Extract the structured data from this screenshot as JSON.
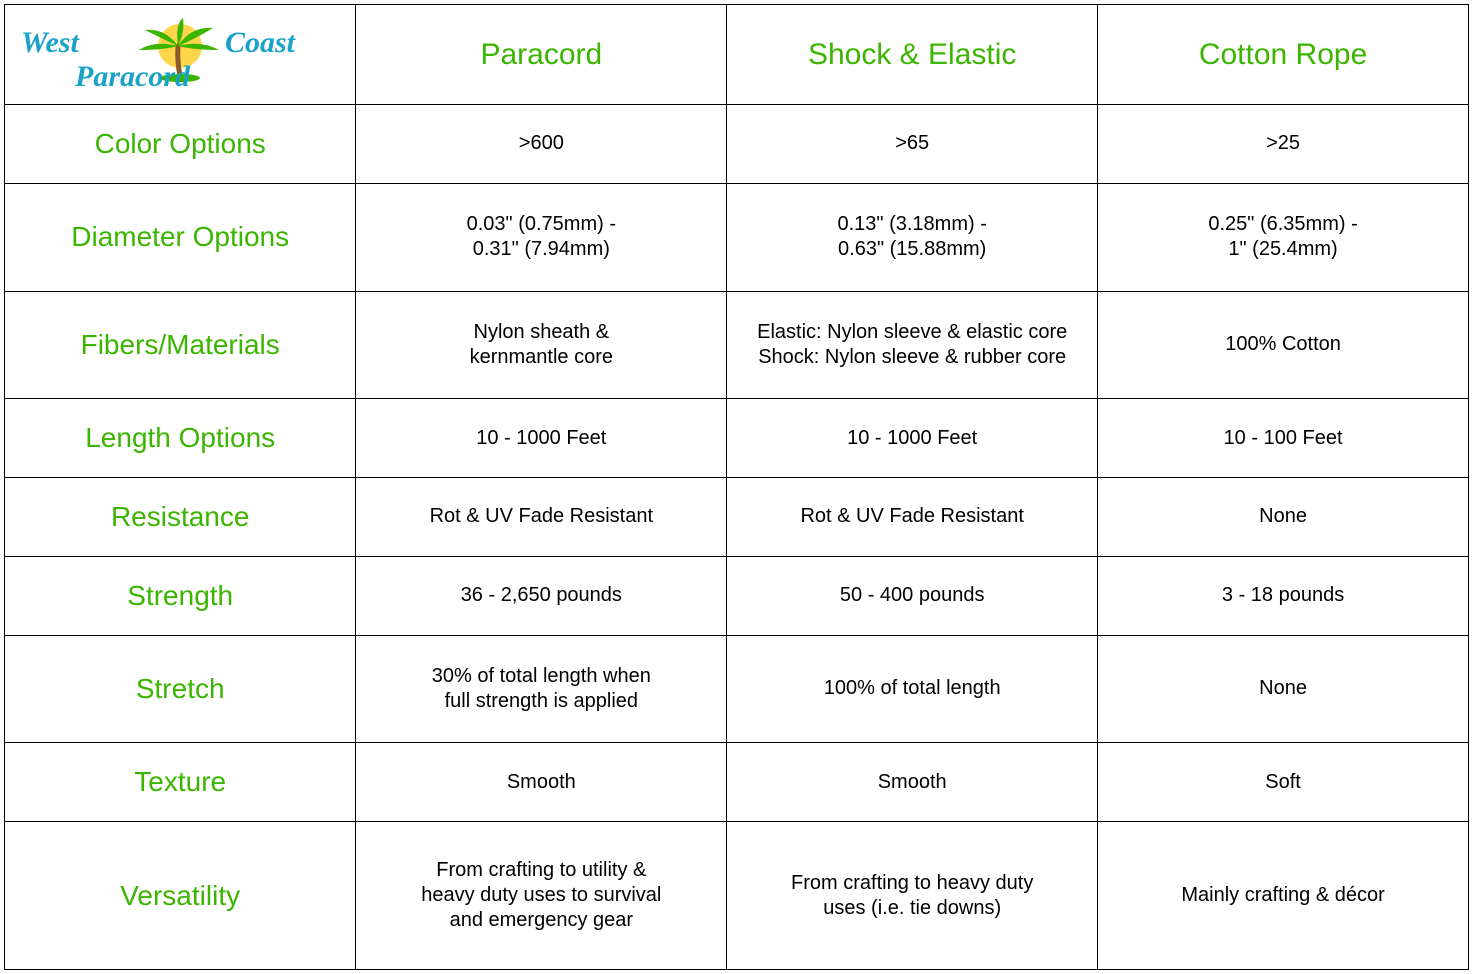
{
  "brand": {
    "line1": "West Coast",
    "line2": "Paracord",
    "text_color": "#1aa3c7",
    "palm_green": "#3bb500",
    "palm_brown": "#8b5a2b",
    "sun_color": "#ffd54a"
  },
  "table": {
    "border_color": "#000000",
    "background_color": "#ffffff",
    "header_color": "#3bb500",
    "row_label_color": "#3bb500",
    "cell_text_color": "#000000",
    "header_fontsize": 30,
    "row_label_fontsize": 28,
    "cell_fontsize": 20,
    "columns": [
      "Paracord",
      "Shock & Elastic",
      "Cotton Rope"
    ],
    "rows": [
      {
        "label": "Color Options",
        "cells": [
          ">600",
          ">65",
          ">25"
        ]
      },
      {
        "label": "Diameter Options",
        "cells": [
          "0.03\" (0.75mm) -\n0.31\" (7.94mm)",
          "0.13\" (3.18mm) -\n0.63\" (15.88mm)",
          "0.25\" (6.35mm) -\n1\" (25.4mm)"
        ]
      },
      {
        "label": "Fibers/Materials",
        "cells": [
          "Nylon sheath &\nkernmantle core",
          "Elastic: Nylon sleeve & elastic core\nShock: Nylon sleeve & rubber core",
          "100% Cotton"
        ]
      },
      {
        "label": "Length Options",
        "cells": [
          "10 - 1000 Feet",
          "10 - 1000 Feet",
          "10 - 100 Feet"
        ]
      },
      {
        "label": "Resistance",
        "cells": [
          "Rot & UV Fade Resistant",
          "Rot & UV Fade Resistant",
          "None"
        ]
      },
      {
        "label": "Strength",
        "cells": [
          "36 - 2,650 pounds",
          "50 - 400 pounds",
          "3 - 18 pounds"
        ]
      },
      {
        "label": "Stretch",
        "cells": [
          "30% of total length when\nfull strength is applied",
          "100% of total length",
          "None"
        ]
      },
      {
        "label": "Texture",
        "cells": [
          "Smooth",
          "Smooth",
          "Soft"
        ]
      },
      {
        "label": "Versatility",
        "cells": [
          "From crafting to utility &\nheavy duty uses to survival\nand emergency gear",
          "From crafting to heavy duty\nuses (i.e. tie downs)",
          "Mainly crafting & décor"
        ]
      }
    ]
  }
}
